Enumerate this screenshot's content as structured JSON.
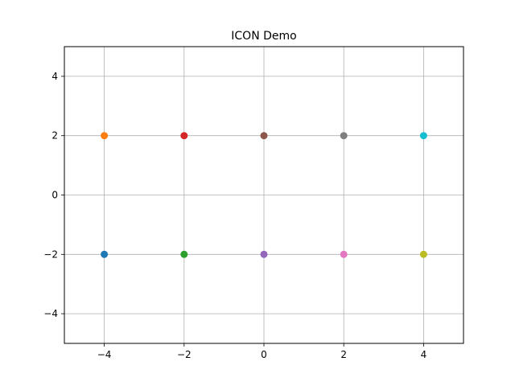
{
  "chart_data": {
    "type": "scatter",
    "title": "ICON Demo",
    "xlabel": "",
    "ylabel": "",
    "xlim": [
      -5,
      5
    ],
    "ylim": [
      -5,
      5
    ],
    "grid": true,
    "x_ticks": [
      -4,
      -2,
      0,
      2,
      4
    ],
    "y_ticks": [
      -4,
      -2,
      0,
      2,
      4
    ],
    "x_tick_labels": [
      "−4",
      "−2",
      "0",
      "2",
      "4"
    ],
    "y_tick_labels": [
      "−4",
      "−2",
      "0",
      "2",
      "4"
    ],
    "points": [
      {
        "x": -4,
        "y": -2,
        "color": "#1f77b4"
      },
      {
        "x": -4,
        "y": 2,
        "color": "#ff7f0e"
      },
      {
        "x": -2,
        "y": -2,
        "color": "#2ca02c"
      },
      {
        "x": -2,
        "y": 2,
        "color": "#d62728"
      },
      {
        "x": 0,
        "y": -2,
        "color": "#9467bd"
      },
      {
        "x": 0,
        "y": 2,
        "color": "#8c564b"
      },
      {
        "x": 2,
        "y": -2,
        "color": "#e377c2"
      },
      {
        "x": 2,
        "y": 2,
        "color": "#7f7f7f"
      },
      {
        "x": 4,
        "y": -2,
        "color": "#bcbd22"
      },
      {
        "x": 4,
        "y": 2,
        "color": "#17becf"
      }
    ]
  }
}
